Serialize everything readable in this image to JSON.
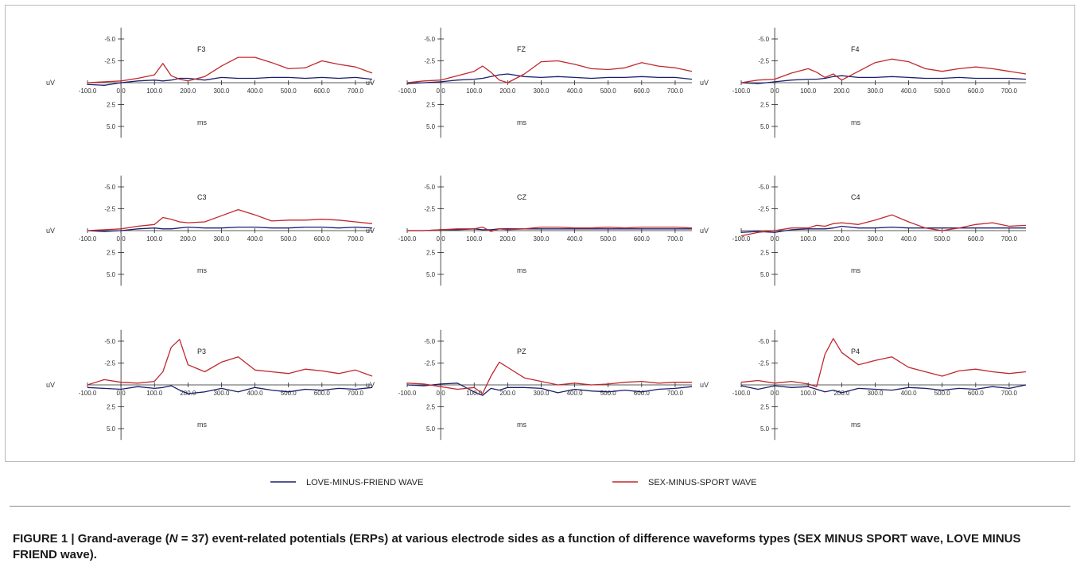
{
  "figure": {
    "caption_label": "FIGURE 1 | ",
    "caption_part1": "Grand-average (",
    "caption_n": "N",
    "caption_part2": " = 37) event-related potentials (ERPs) at various electrode sides as a function of difference waveforms types (SEX MINUS SPORT wave, LOVE MINUS FRIEND wave)."
  },
  "chart_data": {
    "type": "line",
    "xlabel": "ms",
    "ylabel": "uV",
    "x_ticks": [
      "-100.0",
      "0.0",
      "100.0",
      "200.0",
      "300.0",
      "400.0",
      "500.0",
      "600.0",
      "700.0"
    ],
    "y_ticks": [
      "-5.0",
      "-2.5",
      "2.5",
      "5.0"
    ],
    "xlim": [
      -100,
      750
    ],
    "ylim": [
      -6,
      6
    ],
    "y_inverted": true,
    "legend": {
      "placement": "bottom",
      "entries": [
        {
          "label": "LOVE-MINUS-FRIEND WAVE",
          "color": "#1b1f6b"
        },
        {
          "label": "SEX-MINUS-SPORT WAVE",
          "color": "#c0282d"
        }
      ]
    },
    "x": [
      -100,
      -50,
      0,
      50,
      100,
      125,
      150,
      175,
      200,
      250,
      300,
      350,
      400,
      450,
      500,
      550,
      600,
      650,
      700,
      750
    ],
    "panels": [
      {
        "title": "F3",
        "series": [
          {
            "name": "LOVE-MINUS-FRIEND WAVE",
            "values": [
              0.2,
              0.3,
              0,
              -0.2,
              -0.3,
              -0.2,
              -0.3,
              -0.5,
              -0.5,
              -0.3,
              -0.6,
              -0.5,
              -0.5,
              -0.6,
              -0.6,
              -0.5,
              -0.6,
              -0.5,
              -0.6,
              -0.4
            ]
          },
          {
            "name": "SEX-MINUS-SPORT WAVE",
            "values": [
              0,
              -0.1,
              -0.2,
              -0.5,
              -0.9,
              -2.2,
              -0.8,
              -0.4,
              -0.2,
              -0.7,
              -1.9,
              -2.9,
              -2.9,
              -2.3,
              -1.6,
              -1.7,
              -2.5,
              -2.1,
              -1.8,
              -1.1
            ]
          }
        ]
      },
      {
        "title": "FZ",
        "series": [
          {
            "name": "LOVE-MINUS-FRIEND WAVE",
            "values": [
              0.1,
              0,
              -0.1,
              -0.3,
              -0.4,
              -0.5,
              -0.7,
              -0.9,
              -1.0,
              -0.7,
              -0.6,
              -0.7,
              -0.6,
              -0.5,
              -0.6,
              -0.6,
              -0.7,
              -0.6,
              -0.6,
              -0.4
            ]
          },
          {
            "name": "SEX-MINUS-SPORT WAVE",
            "values": [
              0,
              -0.2,
              -0.3,
              -0.8,
              -1.3,
              -1.9,
              -1.2,
              -0.3,
              0,
              -1.0,
              -2.4,
              -2.5,
              -2.1,
              -1.6,
              -1.5,
              -1.7,
              -2.3,
              -1.9,
              -1.7,
              -1.3
            ]
          }
        ]
      },
      {
        "title": "F4",
        "series": [
          {
            "name": "LOVE-MINUS-FRIEND WAVE",
            "values": [
              0,
              0.1,
              -0.1,
              -0.3,
              -0.4,
              -0.4,
              -0.5,
              -0.7,
              -0.8,
              -0.6,
              -0.6,
              -0.7,
              -0.6,
              -0.5,
              -0.5,
              -0.6,
              -0.5,
              -0.5,
              -0.5,
              -0.4
            ]
          },
          {
            "name": "SEX-MINUS-SPORT WAVE",
            "values": [
              0,
              -0.3,
              -0.4,
              -1.1,
              -1.6,
              -1.2,
              -0.6,
              -1.0,
              -0.3,
              -1.3,
              -2.3,
              -2.7,
              -2.4,
              -1.6,
              -1.3,
              -1.6,
              -1.8,
              -1.6,
              -1.3,
              -1.0
            ]
          }
        ]
      },
      {
        "title": "C3",
        "series": [
          {
            "name": "LOVE-MINUS-FRIEND WAVE",
            "values": [
              0,
              0.1,
              0,
              -0.2,
              -0.3,
              -0.2,
              -0.2,
              -0.3,
              -0.4,
              -0.3,
              -0.3,
              -0.4,
              -0.4,
              -0.3,
              -0.3,
              -0.4,
              -0.4,
              -0.3,
              -0.4,
              -0.3
            ]
          },
          {
            "name": "SEX-MINUS-SPORT WAVE",
            "values": [
              0,
              -0.1,
              -0.2,
              -0.5,
              -0.7,
              -1.5,
              -1.3,
              -1.0,
              -0.9,
              -1.0,
              -1.7,
              -2.4,
              -1.8,
              -1.1,
              -1.2,
              -1.2,
              -1.3,
              -1.2,
              -1.0,
              -0.8
            ]
          }
        ]
      },
      {
        "title": "CZ",
        "series": [
          {
            "name": "LOVE-MINUS-FRIEND WAVE",
            "values": [
              0,
              0,
              -0.1,
              -0.1,
              -0.2,
              -0.1,
              -0.1,
              -0.2,
              -0.2,
              -0.2,
              -0.2,
              -0.2,
              -0.2,
              -0.2,
              -0.2,
              -0.2,
              -0.2,
              -0.2,
              -0.2,
              -0.2
            ]
          },
          {
            "name": "SEX-MINUS-SPORT WAVE",
            "values": [
              0,
              0,
              -0.1,
              -0.2,
              -0.2,
              -0.4,
              0.1,
              -0.2,
              -0.1,
              -0.2,
              -0.4,
              -0.4,
              -0.3,
              -0.3,
              -0.4,
              -0.3,
              -0.4,
              -0.4,
              -0.4,
              -0.3
            ]
          }
        ]
      },
      {
        "title": "C4",
        "series": [
          {
            "name": "LOVE-MINUS-FRIEND WAVE",
            "values": [
              0.2,
              0.1,
              0.2,
              -0.1,
              -0.2,
              -0.2,
              -0.2,
              -0.3,
              -0.5,
              -0.3,
              -0.3,
              -0.4,
              -0.3,
              -0.3,
              -0.3,
              -0.3,
              -0.3,
              -0.3,
              -0.3,
              -0.3
            ]
          },
          {
            "name": "SEX-MINUS-SPORT WAVE",
            "values": [
              0.6,
              0.2,
              0,
              -0.3,
              -0.3,
              -0.6,
              -0.5,
              -0.8,
              -0.9,
              -0.7,
              -1.2,
              -1.8,
              -1.0,
              -0.3,
              0,
              -0.3,
              -0.7,
              -0.9,
              -0.5,
              -0.6
            ]
          }
        ]
      },
      {
        "title": "P3",
        "series": [
          {
            "name": "LOVE-MINUS-FRIEND WAVE",
            "values": [
              0.3,
              0.4,
              0.5,
              0.2,
              0.4,
              0.3,
              0.1,
              0.6,
              1.0,
              0.8,
              0.4,
              0.8,
              0.3,
              0.6,
              0.8,
              0.5,
              0.6,
              0.4,
              0.5,
              0.3
            ]
          },
          {
            "name": "SEX-MINUS-SPORT WAVE",
            "values": [
              0,
              -0.6,
              -0.3,
              -0.2,
              -0.4,
              -1.5,
              -4.3,
              -5.2,
              -2.3,
              -1.5,
              -2.6,
              -3.2,
              -1.7,
              -1.5,
              -1.3,
              -1.8,
              -1.6,
              -1.3,
              -1.7,
              -1.0
            ]
          }
        ]
      },
      {
        "title": "PZ",
        "series": [
          {
            "name": "LOVE-MINUS-FRIEND WAVE",
            "values": [
              0,
              0.1,
              -0.1,
              -0.2,
              0.8,
              1.2,
              0.4,
              0.6,
              0.3,
              0.3,
              0.4,
              0.9,
              0.5,
              0.7,
              0.8,
              0.6,
              0.8,
              0.5,
              0.4,
              0.2
            ]
          },
          {
            "name": "SEX-MINUS-SPORT WAVE",
            "values": [
              -0.2,
              -0.1,
              0.2,
              0.5,
              0.3,
              1.0,
              -1.0,
              -2.6,
              -2.0,
              -0.8,
              -0.4,
              0,
              -0.2,
              0,
              -0.1,
              -0.3,
              -0.4,
              -0.2,
              -0.3,
              -0.3
            ]
          }
        ]
      },
      {
        "title": "P4",
        "series": [
          {
            "name": "LOVE-MINUS-FRIEND WAVE",
            "values": [
              0.1,
              0.5,
              0.1,
              0.3,
              0.2,
              0.5,
              0.8,
              0.6,
              0.9,
              0.4,
              0.5,
              0.6,
              0.3,
              0.4,
              0.6,
              0.4,
              0.5,
              0.2,
              0.4,
              0
            ]
          },
          {
            "name": "SEX-MINUS-SPORT WAVE",
            "values": [
              -0.3,
              -0.5,
              -0.2,
              -0.4,
              -0.1,
              0.2,
              -3.5,
              -5.3,
              -3.7,
              -2.3,
              -2.8,
              -3.2,
              -2.0,
              -1.5,
              -1.0,
              -1.6,
              -1.8,
              -1.5,
              -1.3,
              -1.5
            ]
          }
        ]
      }
    ]
  }
}
